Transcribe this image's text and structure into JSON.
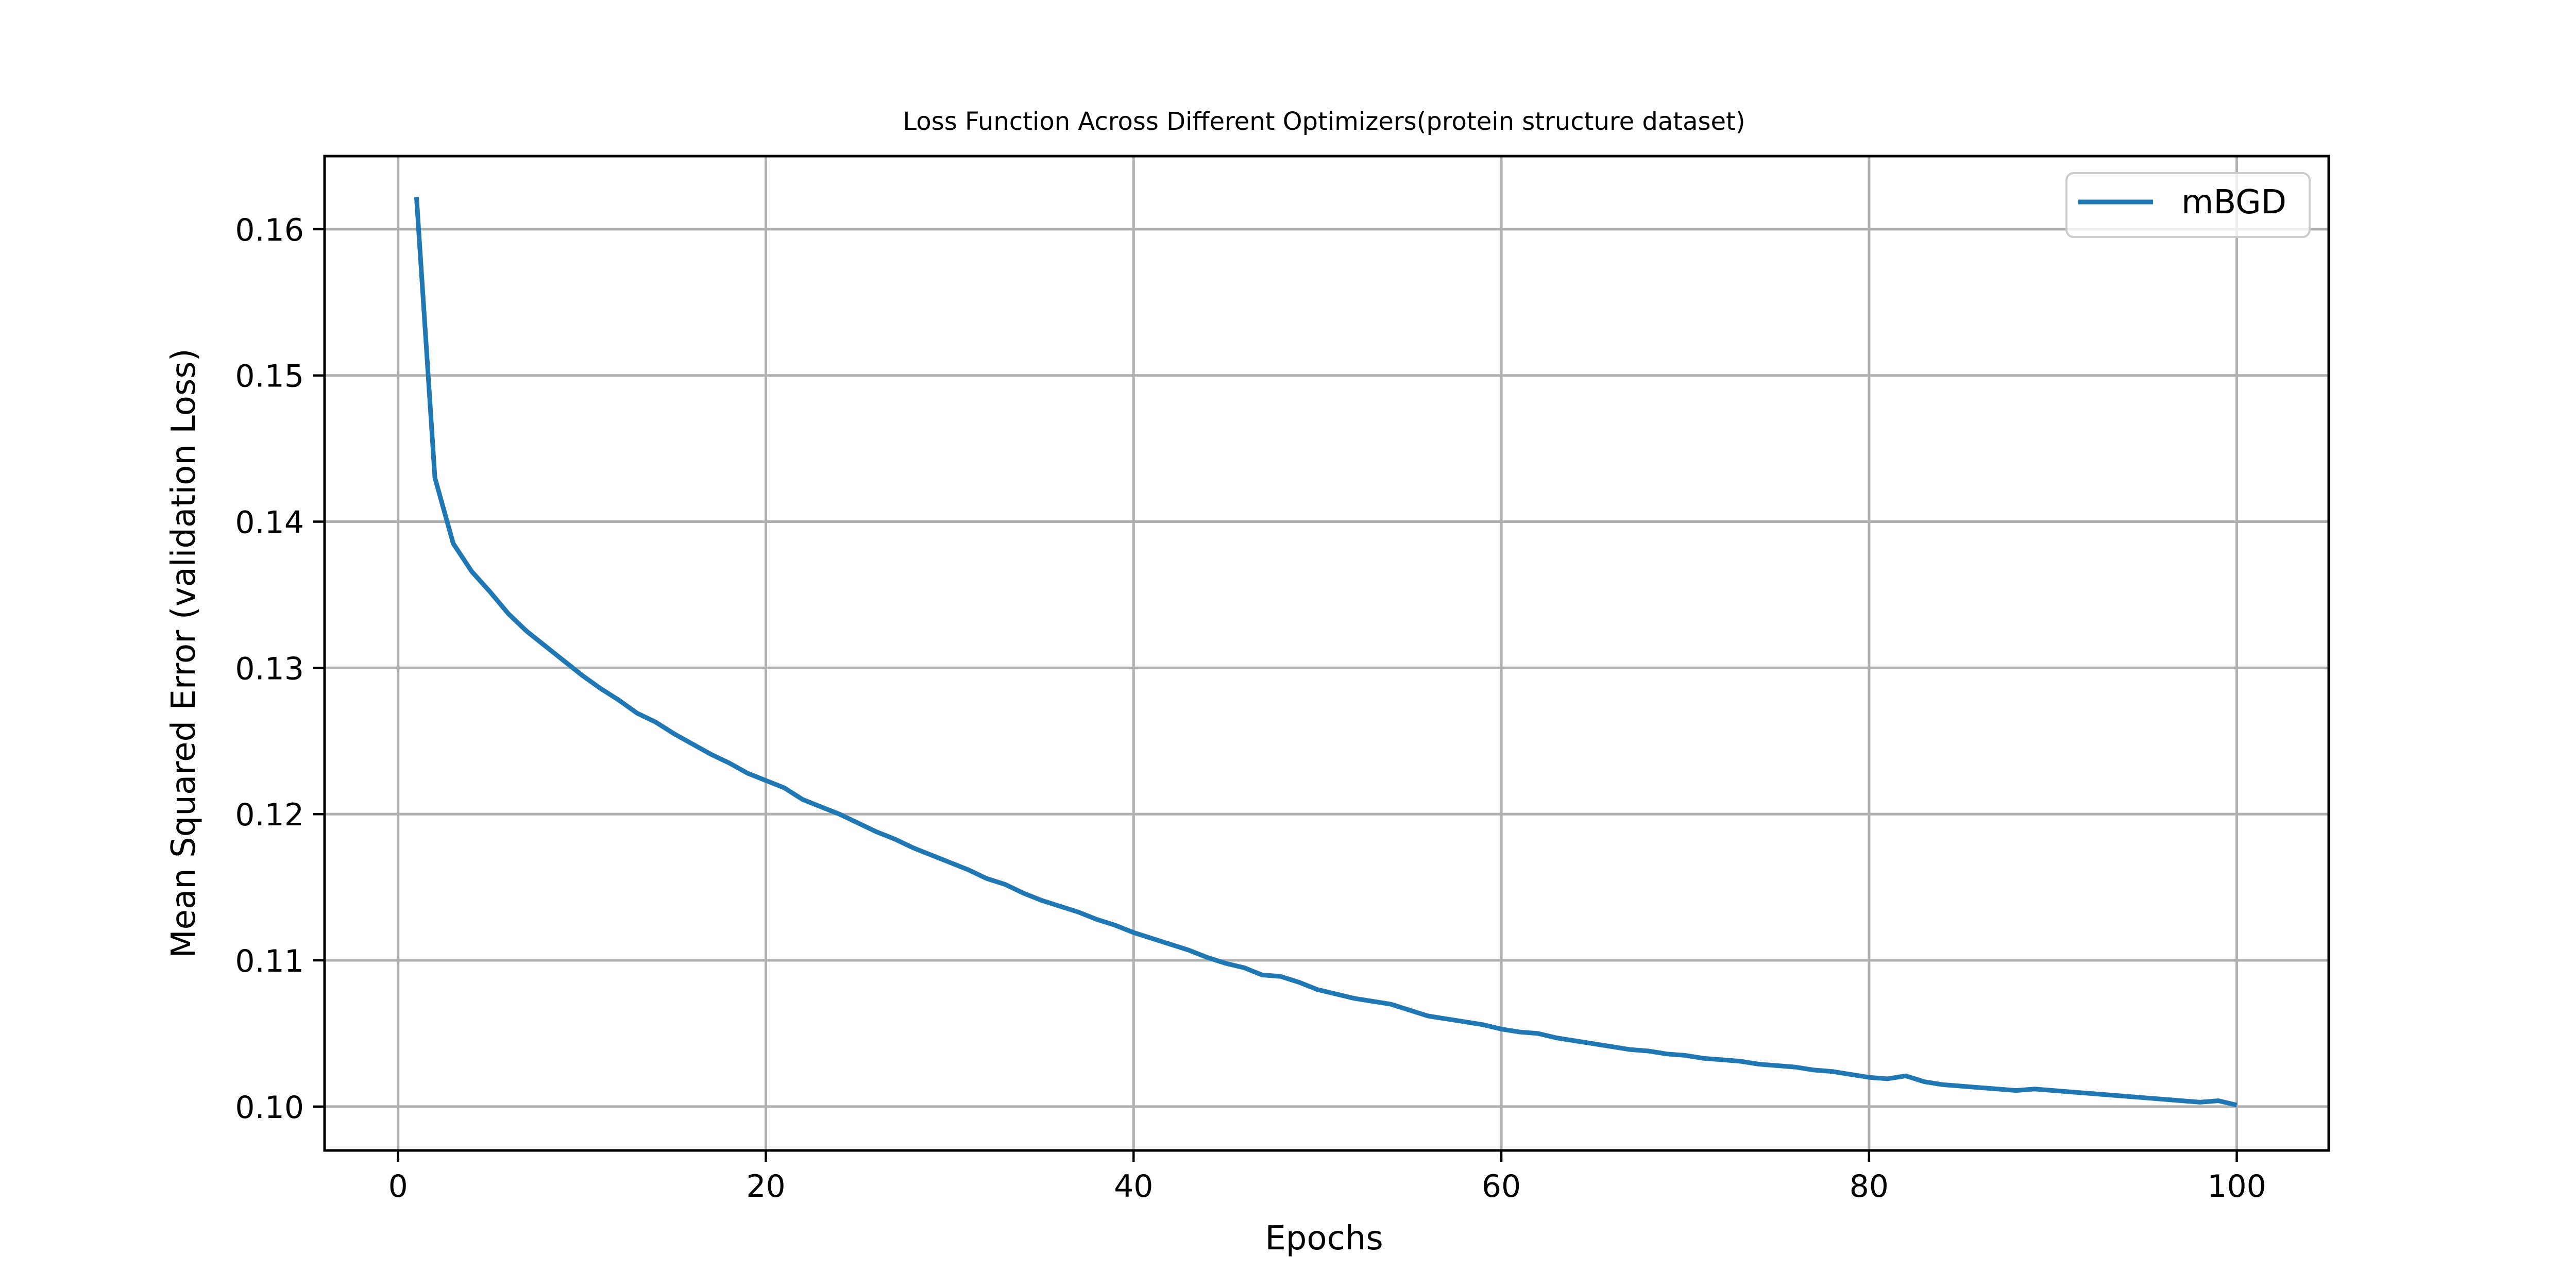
{
  "chart_data": {
    "type": "line",
    "title": "Loss Function Across Different Optimizers(protein structure dataset)",
    "xlabel": "Epochs",
    "ylabel": "Mean Squared Error (validation Loss)",
    "xlim": [
      -4,
      105
    ],
    "ylim": [
      0.097,
      0.165
    ],
    "grid": true,
    "legend_position": "upper right",
    "x_ticks": [
      0,
      20,
      40,
      60,
      80,
      100
    ],
    "x_tick_labels": [
      "0",
      "20",
      "40",
      "60",
      "80",
      "100"
    ],
    "y_ticks": [
      0.1,
      0.11,
      0.12,
      0.13,
      0.14,
      0.15,
      0.16
    ],
    "y_tick_labels": [
      "0.10",
      "0.11",
      "0.12",
      "0.13",
      "0.14",
      "0.15",
      "0.16"
    ],
    "series": [
      {
        "name": "mBGD",
        "color": "#1f77b4",
        "x": [
          1,
          2,
          3,
          4,
          5,
          6,
          7,
          8,
          9,
          10,
          11,
          12,
          13,
          14,
          15,
          16,
          17,
          18,
          19,
          20,
          21,
          22,
          23,
          24,
          25,
          26,
          27,
          28,
          29,
          30,
          31,
          32,
          33,
          34,
          35,
          36,
          37,
          38,
          39,
          40,
          41,
          42,
          43,
          44,
          45,
          46,
          47,
          48,
          49,
          50,
          51,
          52,
          53,
          54,
          55,
          56,
          57,
          58,
          59,
          60,
          61,
          62,
          63,
          64,
          65,
          66,
          67,
          68,
          69,
          70,
          71,
          72,
          73,
          74,
          75,
          76,
          77,
          78,
          79,
          80,
          81,
          82,
          83,
          84,
          85,
          86,
          87,
          88,
          89,
          90,
          91,
          92,
          93,
          94,
          95,
          96,
          97,
          98,
          99,
          100
        ],
        "values": [
          0.1622,
          0.143,
          0.1385,
          0.1366,
          0.1352,
          0.1337,
          0.1325,
          0.1315,
          0.1305,
          0.1295,
          0.1286,
          0.1278,
          0.1269,
          0.1263,
          0.1255,
          0.1248,
          0.1241,
          0.1235,
          0.1228,
          0.1223,
          0.1218,
          0.121,
          0.1205,
          0.12,
          0.1194,
          0.1188,
          0.1183,
          0.1177,
          0.1172,
          0.1167,
          0.1162,
          0.1156,
          0.1152,
          0.1146,
          0.1141,
          0.1137,
          0.1133,
          0.1128,
          0.1124,
          0.1119,
          0.1115,
          0.1111,
          0.1107,
          0.1102,
          0.1098,
          0.1095,
          0.109,
          0.1089,
          0.1085,
          0.108,
          0.1077,
          0.1074,
          0.1072,
          0.107,
          0.1066,
          0.1062,
          0.106,
          0.1058,
          0.1056,
          0.1053,
          0.1051,
          0.105,
          0.1047,
          0.1045,
          0.1043,
          0.1041,
          0.1039,
          0.1038,
          0.1036,
          0.1035,
          0.1033,
          0.1032,
          0.1031,
          0.1029,
          0.1028,
          0.1027,
          0.1025,
          0.1024,
          0.1022,
          0.102,
          0.1019,
          0.1021,
          0.1017,
          0.1015,
          0.1014,
          0.1013,
          0.1012,
          0.1011,
          0.1012,
          0.1011,
          0.101,
          0.1009,
          0.1008,
          0.1007,
          0.1006,
          0.1005,
          0.1004,
          0.1003,
          0.1004,
          0.1001
        ]
      }
    ]
  }
}
